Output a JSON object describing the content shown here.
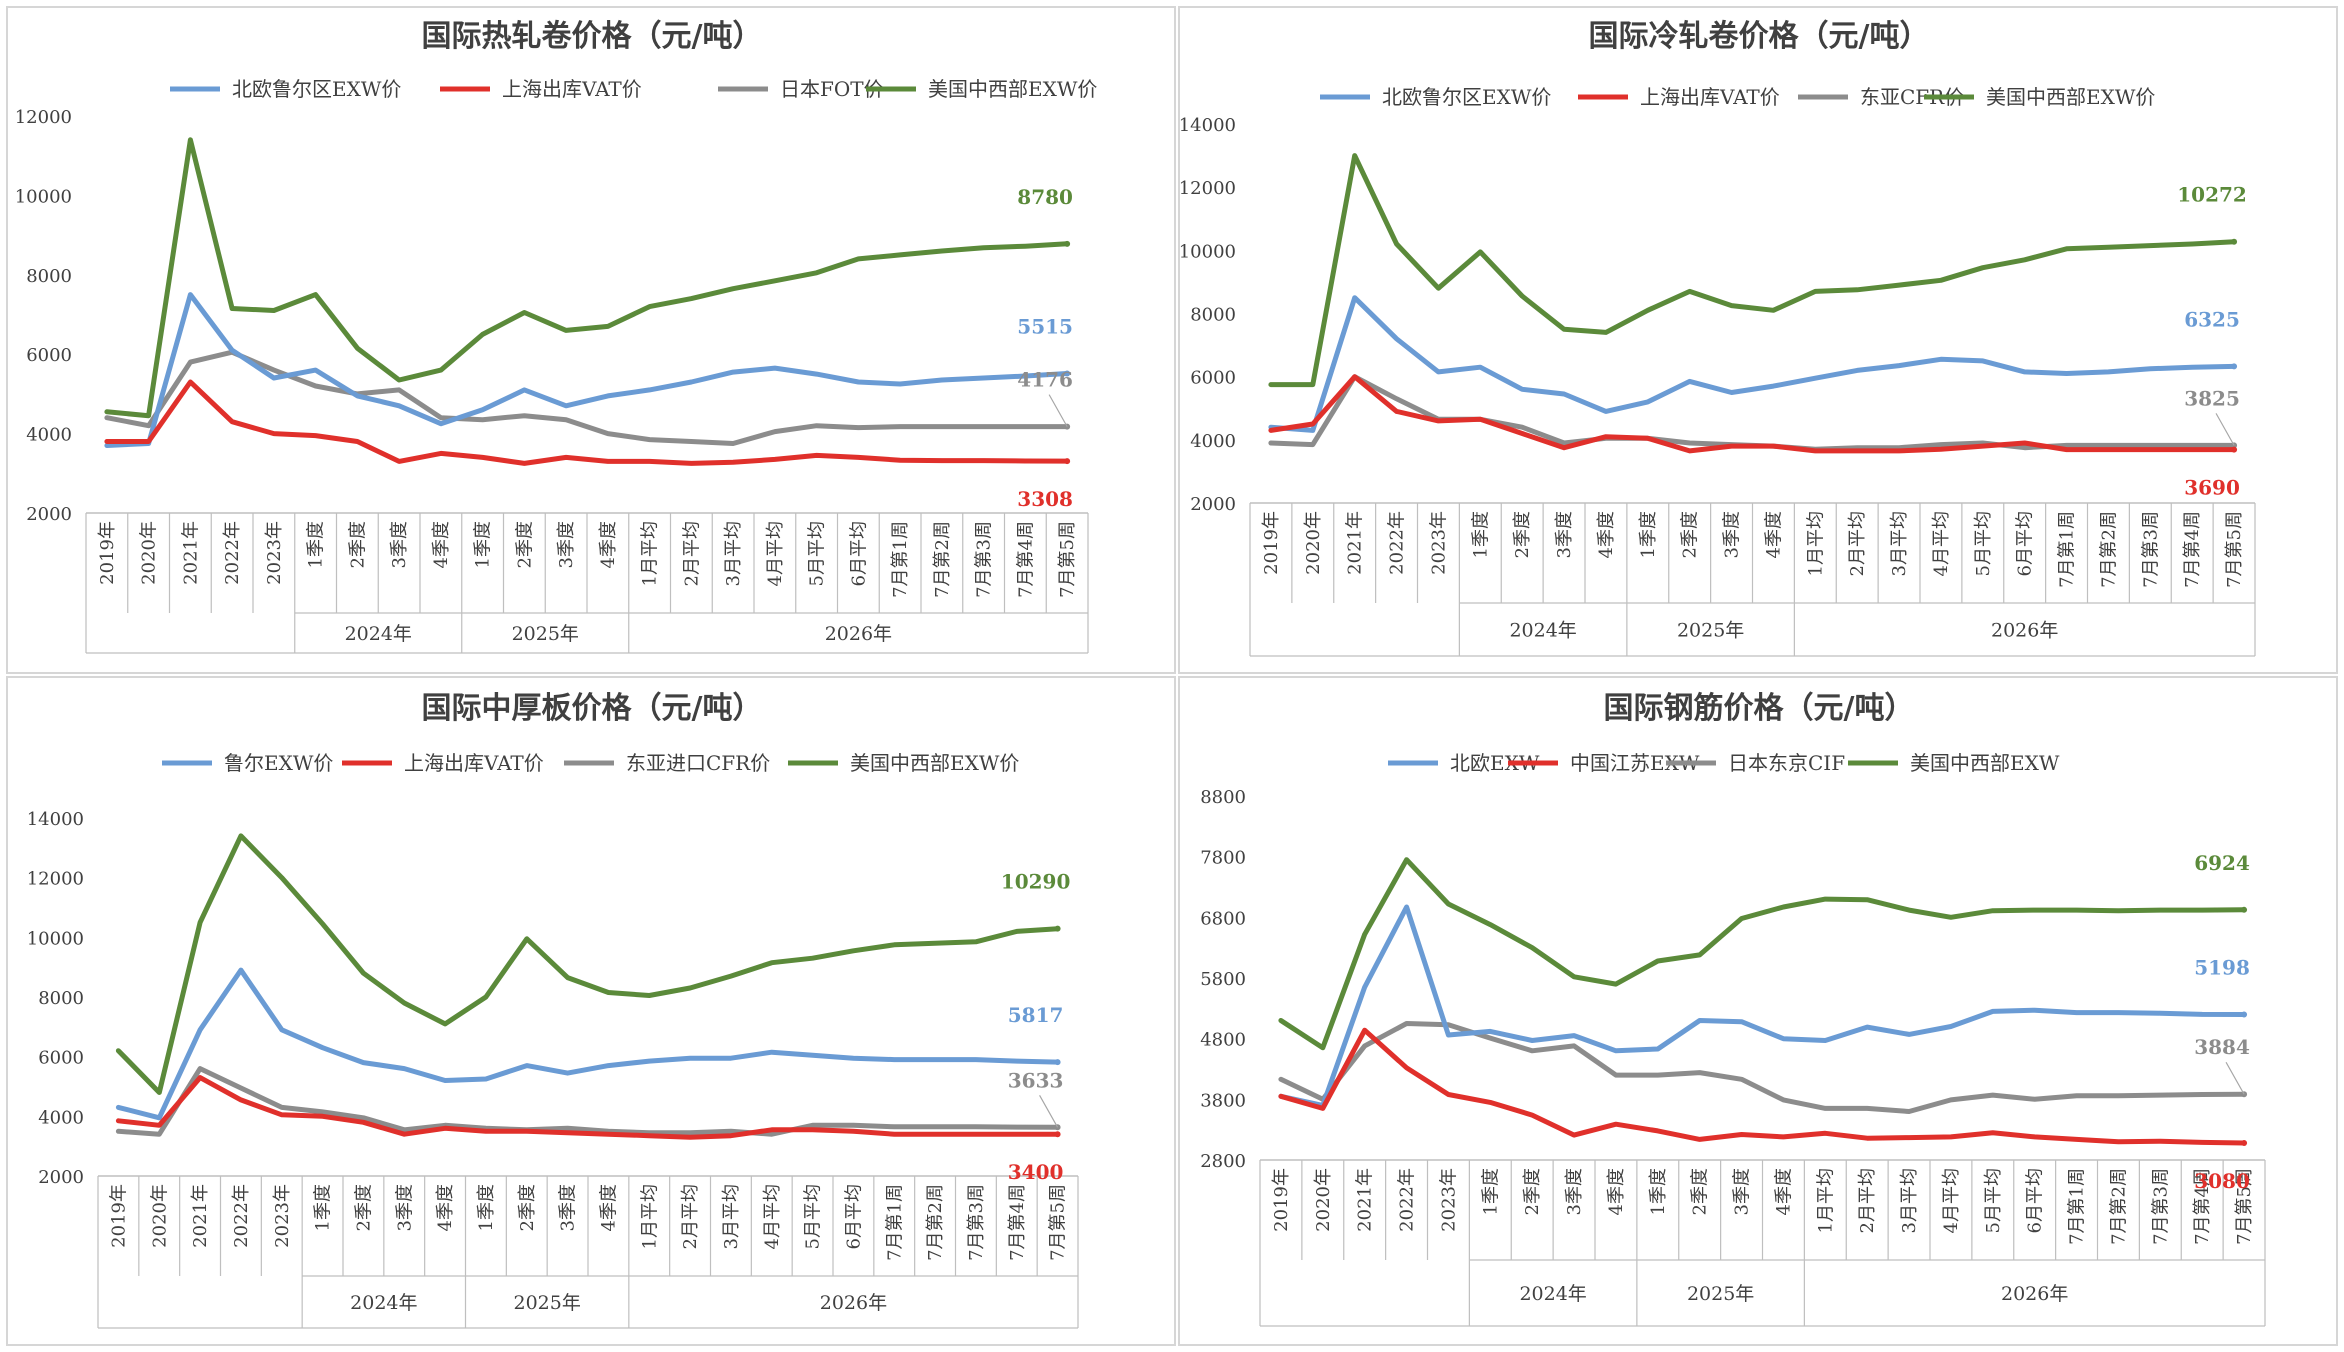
{
  "colors": {
    "blue": "#6a9bd4",
    "red": "#e0302b",
    "gray": "#8c8c8c",
    "green": "#5b8a3a",
    "axis": "#bfbfbf"
  },
  "chart_data": [
    {
      "type": "line",
      "title": "国际热轧卷价格（元/吨）",
      "categories": [
        "2019年",
        "2020年",
        "2021年",
        "2022年",
        "2023年",
        "1季度",
        "2季度",
        "3季度",
        "4季度",
        "1季度",
        "2季度",
        "3季度",
        "4季度",
        "1月平均",
        "2月平均",
        "3月平均",
        "4月平均",
        "5月平均",
        "6月平均",
        "7月第1周",
        "7月第2周",
        "7月第3周",
        "7月第4周",
        "7月第5周"
      ],
      "groups": [
        {
          "label": "2024年",
          "from": 5,
          "to": 8
        },
        {
          "label": "2025年",
          "from": 9,
          "to": 12
        },
        {
          "label": "2026年",
          "from": 13,
          "to": 23
        }
      ],
      "ylim": [
        2000,
        12000
      ],
      "yticks": [
        2000,
        4000,
        6000,
        8000,
        10000,
        12000
      ],
      "series": [
        {
          "name": "北欧鲁尔区EXW价",
          "color": "blue",
          "values": [
            3700,
            3750,
            7500,
            6100,
            5400,
            5600,
            4950,
            4700,
            4250,
            4600,
            5100,
            4700,
            4950,
            5100,
            5300,
            5550,
            5650,
            5500,
            5300,
            5250,
            5350,
            5400,
            5450,
            5515
          ],
          "end_label": "5515"
        },
        {
          "name": "上海出库VAT价",
          "color": "red",
          "values": [
            3800,
            3800,
            5300,
            4300,
            4000,
            3950,
            3800,
            3300,
            3500,
            3400,
            3250,
            3400,
            3300,
            3300,
            3250,
            3280,
            3350,
            3450,
            3400,
            3330,
            3320,
            3320,
            3310,
            3308
          ],
          "end_label": "3308"
        },
        {
          "name": "日本FOT价",
          "color": "gray",
          "values": [
            4400,
            4200,
            5800,
            6050,
            5600,
            5200,
            5000,
            5100,
            4400,
            4350,
            4450,
            4350,
            4000,
            3850,
            3800,
            3750,
            4050,
            4200,
            4150,
            4176,
            4176,
            4176,
            4176,
            4176
          ],
          "end_label": "4176"
        },
        {
          "name": "美国中西部EXW价",
          "color": "green",
          "values": [
            4550,
            4450,
            11400,
            7150,
            7100,
            7500,
            6150,
            5350,
            5600,
            6500,
            7050,
            6600,
            6700,
            7200,
            7400,
            7650,
            7850,
            8050,
            8400,
            8500,
            8600,
            8680,
            8720,
            8780
          ],
          "end_label": "8780"
        }
      ]
    },
    {
      "type": "line",
      "title": "国际冷轧卷价格（元/吨）",
      "categories": [
        "2019年",
        "2020年",
        "2021年",
        "2022年",
        "2023年",
        "1季度",
        "2季度",
        "3季度",
        "4季度",
        "1季度",
        "2季度",
        "3季度",
        "4季度",
        "1月平均",
        "2月平均",
        "3月平均",
        "4月平均",
        "5月平均",
        "6月平均",
        "7月第1周",
        "7月第2周",
        "7月第3周",
        "7月第4周",
        "7月第5周"
      ],
      "groups": [
        {
          "label": "2024年",
          "from": 5,
          "to": 8
        },
        {
          "label": "2025年",
          "from": 9,
          "to": 12
        },
        {
          "label": "2026年",
          "from": 13,
          "to": 23
        }
      ],
      "ylim": [
        2000,
        14000
      ],
      "yticks": [
        2000,
        4000,
        6000,
        8000,
        10000,
        12000,
        14000
      ],
      "series": [
        {
          "name": "北欧鲁尔区EXW价",
          "color": "blue",
          "values": [
            4400,
            4300,
            8500,
            7200,
            6150,
            6300,
            5600,
            5450,
            4900,
            5200,
            5850,
            5500,
            5700,
            5950,
            6200,
            6350,
            6550,
            6500,
            6150,
            6100,
            6150,
            6250,
            6300,
            6325
          ],
          "end_label": "6325"
        },
        {
          "name": "上海出库VAT价",
          "color": "red",
          "values": [
            4300,
            4500,
            6000,
            4900,
            4600,
            4650,
            4200,
            3750,
            4100,
            4050,
            3650,
            3800,
            3800,
            3650,
            3650,
            3650,
            3700,
            3800,
            3900,
            3690,
            3690,
            3690,
            3690,
            3690
          ],
          "end_label": "3690"
        },
        {
          "name": "东亚CFR价",
          "color": "gray",
          "values": [
            3900,
            3850,
            6000,
            5300,
            4650,
            4650,
            4400,
            3900,
            4050,
            4050,
            3900,
            3850,
            3800,
            3700,
            3750,
            3750,
            3850,
            3900,
            3750,
            3825,
            3825,
            3825,
            3825,
            3825
          ],
          "end_label": "3825"
        },
        {
          "name": "美国中西部EXW价",
          "color": "green",
          "values": [
            5750,
            5750,
            13000,
            10200,
            8800,
            9950,
            8550,
            7500,
            7400,
            8100,
            8700,
            8250,
            8100,
            8700,
            8750,
            8900,
            9050,
            9450,
            9700,
            10050,
            10100,
            10150,
            10200,
            10272
          ],
          "end_label": "10272"
        }
      ]
    },
    {
      "type": "line",
      "title": "国际中厚板价格（元/吨）",
      "categories": [
        "2019年",
        "2020年",
        "2021年",
        "2022年",
        "2023年",
        "1季度",
        "2季度",
        "3季度",
        "4季度",
        "1季度",
        "2季度",
        "3季度",
        "4季度",
        "1月平均",
        "2月平均",
        "3月平均",
        "4月平均",
        "5月平均",
        "6月平均",
        "7月第1周",
        "7月第2周",
        "7月第3周",
        "7月第4周",
        "7月第5周"
      ],
      "groups": [
        {
          "label": "2024年",
          "from": 5,
          "to": 8
        },
        {
          "label": "2025年",
          "from": 9,
          "to": 12
        },
        {
          "label": "2026年",
          "from": 13,
          "to": 23
        }
      ],
      "ylim": [
        2000,
        14000
      ],
      "yticks": [
        2000,
        4000,
        6000,
        8000,
        10000,
        12000,
        14000
      ],
      "series": [
        {
          "name": "鲁尔EXW价",
          "color": "blue",
          "values": [
            4300,
            3950,
            6900,
            8900,
            6900,
            6300,
            5800,
            5600,
            5200,
            5250,
            5700,
            5450,
            5700,
            5850,
            5950,
            5950,
            6150,
            6050,
            5950,
            5900,
            5900,
            5900,
            5850,
            5817
          ],
          "end_label": "5817"
        },
        {
          "name": "上海出库VAT价",
          "color": "red",
          "values": [
            3850,
            3700,
            5300,
            4550,
            4050,
            4000,
            3800,
            3400,
            3600,
            3500,
            3500,
            3450,
            3400,
            3350,
            3300,
            3350,
            3550,
            3550,
            3500,
            3400,
            3400,
            3400,
            3400,
            3400
          ],
          "end_label": "3400"
        },
        {
          "name": "东亚进口CFR价",
          "color": "gray",
          "values": [
            3500,
            3400,
            5600,
            4950,
            4300,
            4150,
            3950,
            3550,
            3700,
            3600,
            3550,
            3600,
            3500,
            3450,
            3450,
            3500,
            3400,
            3700,
            3700,
            3650,
            3650,
            3650,
            3640,
            3633
          ],
          "end_label": "3633"
        },
        {
          "name": "美国中西部EXW价",
          "color": "green",
          "values": [
            6200,
            4800,
            10500,
            13400,
            12000,
            10450,
            8800,
            7800,
            7100,
            8000,
            9950,
            8650,
            8150,
            8050,
            8300,
            8700,
            9150,
            9300,
            9550,
            9750,
            9800,
            9850,
            10200,
            10290
          ],
          "end_label": "10290"
        }
      ]
    },
    {
      "type": "line",
      "title": "国际钢筋价格（元/吨）",
      "categories": [
        "2019年",
        "2020年",
        "2021年",
        "2022年",
        "2023年",
        "1季度",
        "2季度",
        "3季度",
        "4季度",
        "1季度",
        "2季度",
        "3季度",
        "4季度",
        "1月平均",
        "2月平均",
        "3月平均",
        "4月平均",
        "5月平均",
        "6月平均",
        "7月第1周",
        "7月第2周",
        "7月第3周",
        "7月第4周",
        "7月第5周"
      ],
      "groups": [
        {
          "label": "2024年",
          "from": 5,
          "to": 8
        },
        {
          "label": "2025年",
          "from": 9,
          "to": 12
        },
        {
          "label": "2026年",
          "from": 13,
          "to": 23
        }
      ],
      "ylim": [
        2800,
        8800
      ],
      "yticks": [
        2800,
        3800,
        4800,
        5800,
        6800,
        7800,
        8800
      ],
      "series": [
        {
          "name": "北欧EXW",
          "color": "blue",
          "values": [
            3850,
            3700,
            5650,
            6970,
            4860,
            4920,
            4770,
            4850,
            4600,
            4630,
            5100,
            5080,
            4800,
            4770,
            4990,
            4870,
            5000,
            5250,
            5270,
            5230,
            5230,
            5220,
            5200,
            5198
          ],
          "end_label": "5198"
        },
        {
          "name": "中国江苏EXW",
          "color": "red",
          "values": [
            3850,
            3650,
            4940,
            4320,
            3880,
            3750,
            3540,
            3210,
            3390,
            3280,
            3140,
            3220,
            3180,
            3240,
            3160,
            3170,
            3180,
            3250,
            3180,
            3140,
            3100,
            3110,
            3090,
            3080
          ],
          "end_label": "3080"
        },
        {
          "name": "日本东京CIF",
          "color": "gray",
          "values": [
            4130,
            3800,
            4680,
            5050,
            5030,
            4810,
            4600,
            4680,
            4200,
            4200,
            4240,
            4130,
            3790,
            3650,
            3650,
            3600,
            3790,
            3870,
            3800,
            3860,
            3860,
            3870,
            3880,
            3884
          ],
          "end_label": "3884"
        },
        {
          "name": "美国中西部EXW",
          "color": "green",
          "values": [
            5100,
            4650,
            6520,
            7750,
            7020,
            6680,
            6300,
            5820,
            5700,
            6080,
            6180,
            6780,
            6970,
            7100,
            7090,
            6920,
            6800,
            6910,
            6920,
            6920,
            6910,
            6920,
            6920,
            6924
          ],
          "end_label": "6924"
        }
      ]
    }
  ]
}
